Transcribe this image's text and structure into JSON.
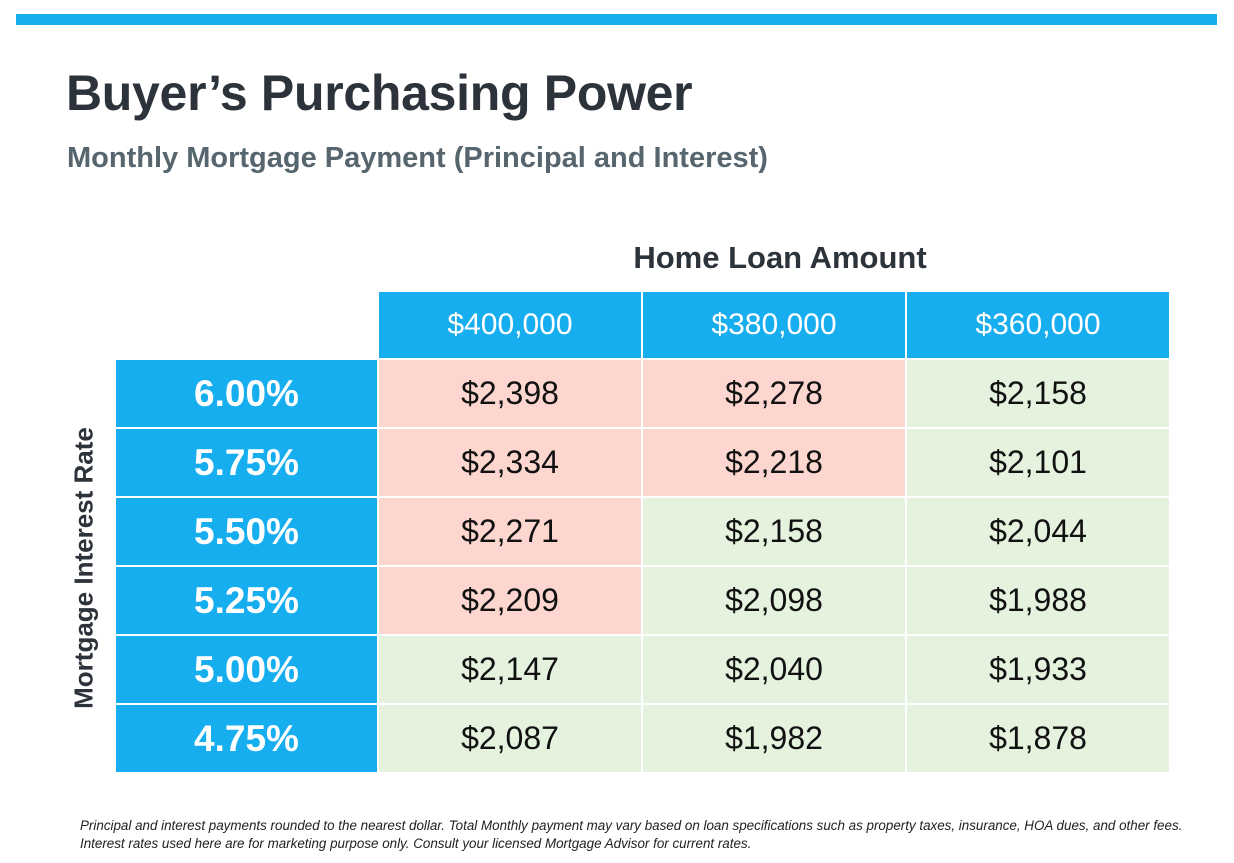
{
  "title": "Buyer’s Purchasing Power",
  "subtitle": "Monthly Mortgage Payment (Principal and Interest)",
  "colors": {
    "accent": "#17aeef",
    "above_budget": "#fdd7cf",
    "within_budget": "#e5f2de"
  },
  "chart_data": {
    "type": "table",
    "title": "Buyer’s Purchasing Power",
    "subtitle": "Monthly Mortgage Payment (Principal and Interest)",
    "column_header": "Home Loan Amount",
    "row_header": "Mortgage Interest Rate",
    "columns": [
      "$400,000",
      "$380,000",
      "$360,000"
    ],
    "rows": [
      {
        "rate": "6.00%",
        "values": [
          "$2,398",
          "$2,278",
          "$2,158"
        ],
        "shading": [
          "pink",
          "pink",
          "green"
        ]
      },
      {
        "rate": "5.75%",
        "values": [
          "$2,334",
          "$2,218",
          "$2,101"
        ],
        "shading": [
          "pink",
          "pink",
          "green"
        ]
      },
      {
        "rate": "5.50%",
        "values": [
          "$2,271",
          "$2,158",
          "$2,044"
        ],
        "shading": [
          "pink",
          "green",
          "green"
        ]
      },
      {
        "rate": "5.25%",
        "values": [
          "$2,209",
          "$2,098",
          "$1,988"
        ],
        "shading": [
          "pink",
          "green",
          "green"
        ]
      },
      {
        "rate": "5.00%",
        "values": [
          "$2,147",
          "$2,040",
          "$1,933"
        ],
        "shading": [
          "green",
          "green",
          "green"
        ]
      },
      {
        "rate": "4.75%",
        "values": [
          "$2,087",
          "$1,982",
          "$1,878"
        ],
        "shading": [
          "green",
          "green",
          "green"
        ]
      }
    ]
  },
  "footnote": "Principal and interest payments rounded to the nearest dollar. Total Monthly payment may vary based on loan specifications such as property taxes, insurance, HOA dues, and other fees. Interest rates used here are for marketing purpose only. Consult your licensed Mortgage Advisor for current rates."
}
